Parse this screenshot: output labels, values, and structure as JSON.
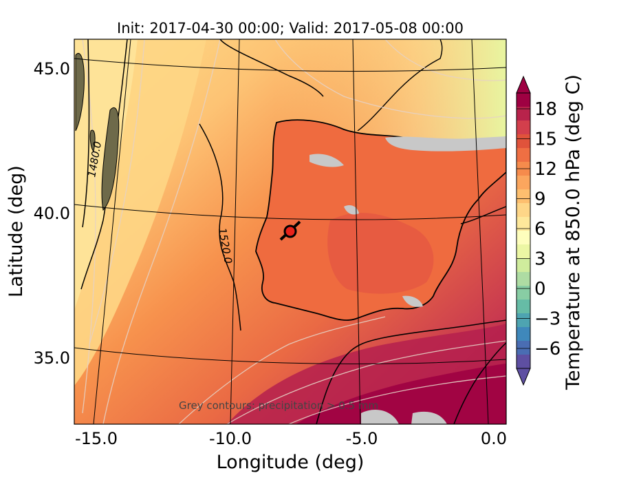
{
  "title": "Init: 2017-04-30 00:00; Valid: 2017-05-08 00:00",
  "x_axis": {
    "label": "Longitude (deg)",
    "ticks": [
      "-15.0",
      "-10.0",
      "-5.0",
      "0.0"
    ]
  },
  "y_axis": {
    "label": "Latitude (deg)",
    "ticks": [
      "45.0",
      "40.0",
      "35.0"
    ]
  },
  "colorbar": {
    "label": "Temperature at 850.0 hPa (deg C)",
    "ticks": [
      "18",
      "15",
      "12",
      "9",
      "6",
      "3",
      "0",
      "−3",
      "−6"
    ],
    "colors": {
      "warmest": "#9e0142",
      "warm": "#e0533b",
      "mid": "#fdbf6f",
      "neutral": "#fefebd",
      "cool": "#9fd5a3",
      "coldest": "#5e4fa2"
    }
  },
  "contour_labels": [
    "1480.0",
    "1520.0"
  ],
  "note": "Grey contours: precipitation > 0.5 mm",
  "map": {
    "marker_color": "#e8221b",
    "land_outline": "#000000"
  }
}
